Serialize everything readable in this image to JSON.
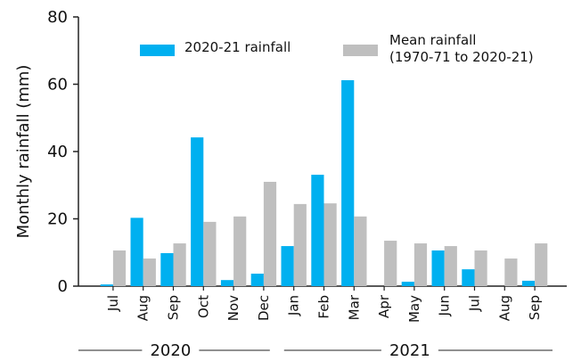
{
  "chart_data": {
    "type": "bar",
    "y_label": "Monthly rainfall (mm)",
    "categories": [
      "Jul",
      "Aug",
      "Sep",
      "Oct",
      "Nov",
      "Dec",
      "Jan",
      "Feb",
      "Mar",
      "Apr",
      "May",
      "Jun",
      "Jul",
      "Aug",
      "Sep"
    ],
    "groups": [
      {
        "label": "2020",
        "start": 0,
        "end": 5
      },
      {
        "label": "2021",
        "start": 6,
        "end": 14
      }
    ],
    "series": [
      {
        "name": "2020-21 rainfall",
        "color": "#00b0f0",
        "values": [
          0.5,
          20.3,
          9.8,
          44.2,
          1.8,
          3.7,
          11.9,
          33.1,
          61.2,
          0,
          1.3,
          10.6,
          5,
          0,
          1.6
        ]
      },
      {
        "name": "Mean rainfall\n(1970-71 to 2020-21)",
        "color": "#bfbfbf",
        "values": [
          10.6,
          8.2,
          12.7,
          19.1,
          20.7,
          31,
          24.4,
          24.6,
          20.7,
          13.5,
          12.7,
          11.9,
          10.6,
          8.2,
          12.7
        ]
      }
    ],
    "ylim": [
      0,
      80
    ],
    "yticks": [
      0,
      20,
      40,
      60,
      80
    ],
    "grid": false
  }
}
